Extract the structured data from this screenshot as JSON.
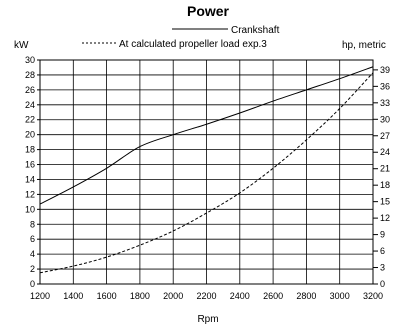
{
  "chart_data": {
    "type": "line",
    "title": "Power",
    "xlabel": "Rpm",
    "ylabel_left": "kW",
    "ylabel_right": "hp, metric",
    "xlim": [
      1200,
      3200
    ],
    "ylim_left": [
      0,
      30
    ],
    "ylim_right": [
      0,
      40.8
    ],
    "grid": true,
    "legend_position": "top-center",
    "x_ticks": [
      1200,
      1400,
      1600,
      1800,
      2000,
      2200,
      2400,
      2600,
      2800,
      3000,
      3200
    ],
    "y_ticks_left": [
      0,
      2,
      4,
      6,
      8,
      10,
      12,
      14,
      16,
      18,
      20,
      22,
      24,
      26,
      28,
      30
    ],
    "y_ticks_right": [
      0,
      3,
      6,
      9,
      12,
      15,
      18,
      21,
      24,
      27,
      30,
      33,
      36,
      39
    ],
    "series": [
      {
        "name": "Crankshaft",
        "style": "solid",
        "color": "#000000",
        "x": [
          1200,
          1400,
          1600,
          1800,
          2000,
          2200,
          2400,
          2600,
          2800,
          3000,
          3200
        ],
        "y": [
          10.7,
          13.0,
          15.5,
          18.4,
          20.0,
          21.4,
          22.9,
          24.5,
          26.0,
          27.5,
          29.1
        ]
      },
      {
        "name": "At calculated propeller load exp.3",
        "style": "dashed",
        "color": "#000000",
        "x": [
          1200,
          1400,
          1600,
          1800,
          2000,
          2200,
          2400,
          2600,
          2800,
          3000,
          3200
        ],
        "y": [
          1.5,
          2.4,
          3.6,
          5.2,
          7.1,
          9.5,
          12.2,
          15.5,
          19.3,
          23.5,
          28.3
        ]
      }
    ]
  }
}
